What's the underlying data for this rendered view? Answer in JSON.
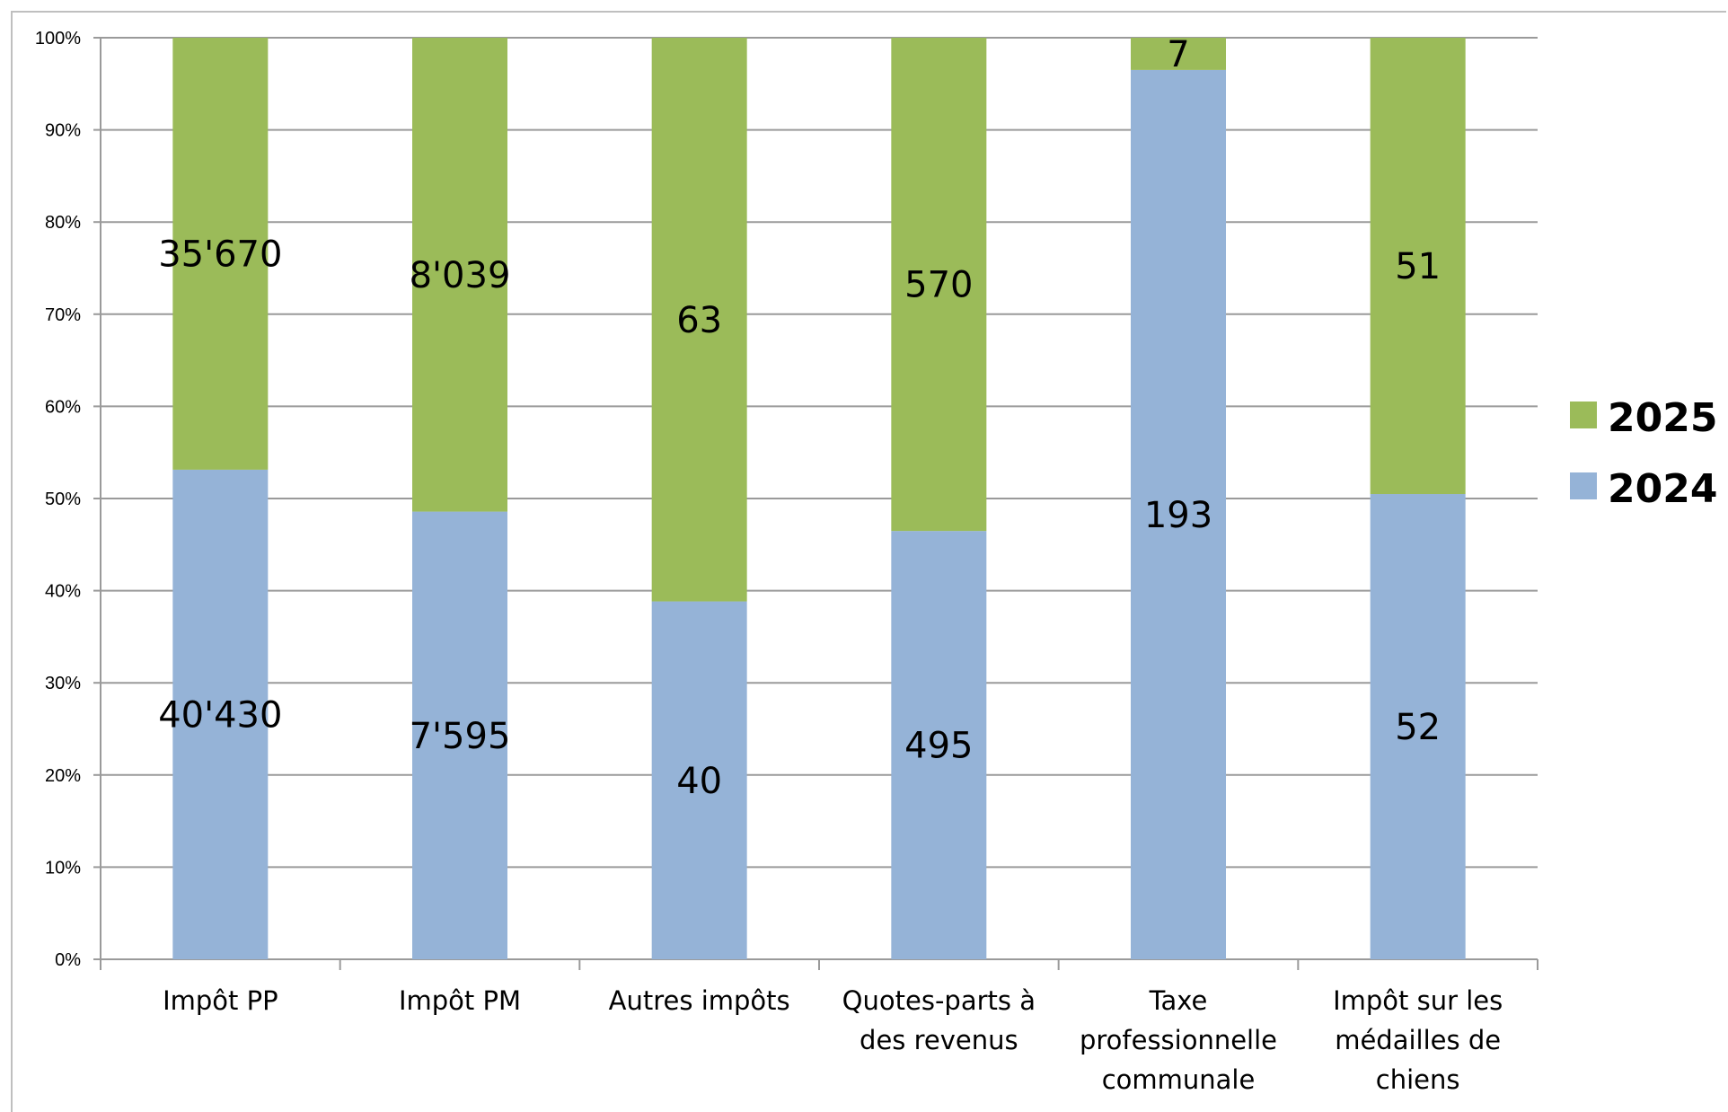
{
  "chart_data": {
    "type": "bar",
    "stacked": "percent",
    "categories": [
      "Impôt PP",
      "Impôt PM",
      "Autres impôts",
      "Quotes-parts à des revenus",
      "Taxe professionnelle communale",
      "Impôt sur les médailles de chiens"
    ],
    "category_lines": [
      [
        "Impôt PP"
      ],
      [
        "Impôt PM"
      ],
      [
        "Autres impôts"
      ],
      [
        "Quotes-parts à",
        "des revenus"
      ],
      [
        "Taxe",
        "professionnelle",
        "communale"
      ],
      [
        "Impôt sur les",
        "médailles de",
        "chiens"
      ]
    ],
    "series": [
      {
        "name": "2024",
        "color": "#95b3d7",
        "values": [
          40430,
          7595,
          40,
          495,
          193,
          52
        ],
        "labels": [
          "40'430",
          "7'595",
          "40",
          "495",
          "193",
          "52"
        ]
      },
      {
        "name": "2025",
        "color": "#9bbb59",
        "values": [
          35670,
          8039,
          63,
          570,
          7,
          51
        ],
        "labels": [
          "35'670",
          "8'039",
          "63",
          "570",
          "7",
          "51"
        ]
      }
    ],
    "yticks": [
      "0%",
      "10%",
      "20%",
      "30%",
      "40%",
      "50%",
      "60%",
      "70%",
      "80%",
      "90%",
      "100%"
    ],
    "ylim": [
      0,
      100
    ],
    "grid": true,
    "legend": {
      "position": "right",
      "order": [
        "2025",
        "2024"
      ]
    }
  }
}
